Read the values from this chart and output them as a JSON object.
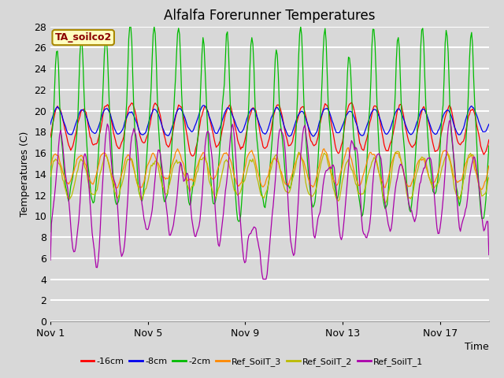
{
  "title": "Alfalfa Forerunner Temperatures",
  "xlabel": "Time",
  "ylabel": "Temperatures (C)",
  "ylim": [
    0,
    28
  ],
  "yticks": [
    0,
    2,
    4,
    6,
    8,
    10,
    12,
    14,
    16,
    18,
    20,
    22,
    24,
    26,
    28
  ],
  "xtick_labels": [
    "Nov 1",
    "Nov 5",
    "Nov 9",
    "Nov 13",
    "Nov 17"
  ],
  "xtick_pos": [
    0,
    4,
    8,
    12,
    16
  ],
  "annotation_text": "TA_soilco2",
  "annotation_color": "#8B0000",
  "annotation_bg": "#FFFFC0",
  "bg_color": "#D8D8D8",
  "plot_bg_color": "#D8D8D8",
  "grid_color": "#FFFFFF",
  "series": [
    {
      "label": "-16cm",
      "color": "#FF0000"
    },
    {
      "label": "-8cm",
      "color": "#0000EE"
    },
    {
      "label": "-2cm",
      "color": "#00BB00"
    },
    {
      "label": "Ref_SoilT_3",
      "color": "#FF8800"
    },
    {
      "label": "Ref_SoilT_2",
      "color": "#BBBB00"
    },
    {
      "label": "Ref_SoilT_1",
      "color": "#AA00AA"
    }
  ],
  "title_fontsize": 12,
  "label_fontsize": 9,
  "tick_fontsize": 9
}
